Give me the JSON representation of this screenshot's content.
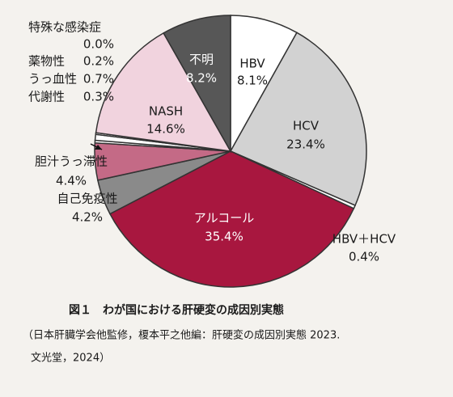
{
  "chart_data": {
    "type": "pie",
    "categories": [
      "HBV",
      "HCV",
      "HBV＋HCV",
      "アルコール",
      "自己免疫性",
      "胆汁うっ滞性",
      "代謝性",
      "うっ血性",
      "薬物性",
      "特殊な感染症",
      "NASH",
      "不明"
    ],
    "values": [
      8.1,
      23.4,
      0.4,
      35.4,
      4.2,
      4.4,
      0.3,
      0.7,
      0.2,
      0.0,
      14.6,
      8.2
    ],
    "value_labels": [
      "8.1%",
      "23.4%",
      "0.4%",
      "35.4%",
      "4.2%",
      "4.4%",
      "0.3%",
      "0.7%",
      "0.2%",
      "0.0%",
      "14.6%",
      "8.2%"
    ],
    "colors": [
      "#ffffff",
      "#d2d2d2",
      "#ffffff",
      "#a8173f",
      "#8a8a8a",
      "#c46a86",
      "#ffffff",
      "#ffffff",
      "#ffffff",
      "#ffffff",
      "#f1d3de",
      "#575757"
    ],
    "caption": "図１　わが国における肝硬変の成因別実態",
    "source": [
      "（日本肝臓学会他監修，榎本平之他編：肝硬変の成因別実態 2023.",
      "文光堂，2024）"
    ]
  }
}
